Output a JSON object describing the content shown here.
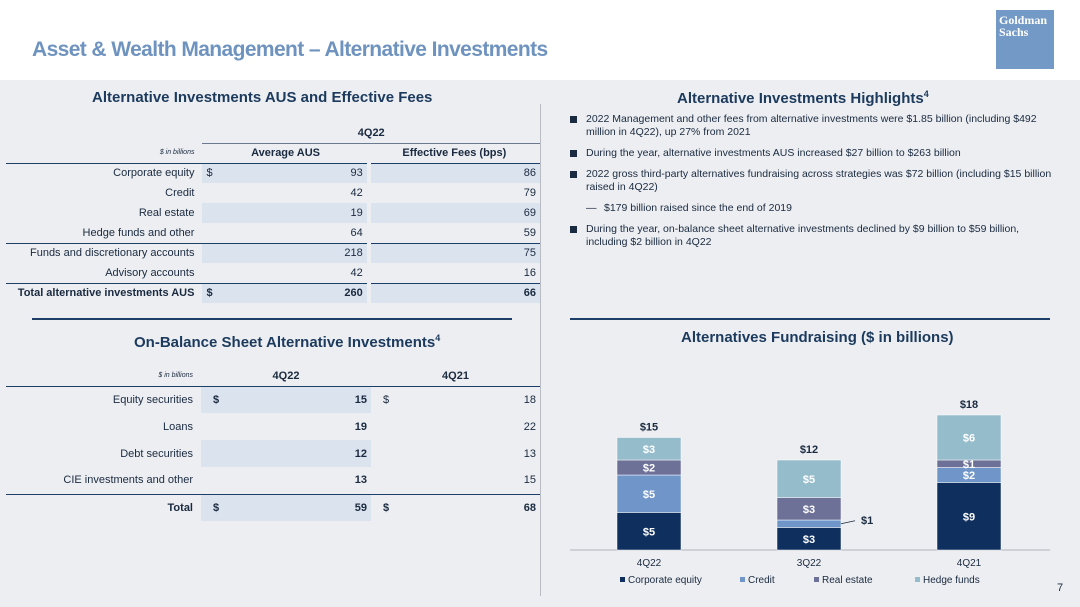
{
  "title": "Asset & Wealth Management – Alternative Investments",
  "logo": {
    "line1": "Goldman",
    "line2": "Sachs"
  },
  "aus": {
    "heading": "Alternative Investments AUS and Effective Fees",
    "period": "4Q22",
    "unit": "$ in billions",
    "col1": "Average AUS",
    "col2": "Effective Fees (bps)",
    "rows": [
      {
        "label": "Corporate equity",
        "dollar": "$",
        "aus": "93",
        "fees": "86"
      },
      {
        "label": "Credit",
        "dollar": "",
        "aus": "42",
        "fees": "79"
      },
      {
        "label": "Real estate",
        "dollar": "",
        "aus": "19",
        "fees": "69"
      },
      {
        "label": "Hedge funds and other",
        "dollar": "",
        "aus": "64",
        "fees": "59"
      },
      {
        "label": "Funds and discretionary accounts",
        "dollar": "",
        "aus": "218",
        "fees": "75"
      },
      {
        "label": "Advisory accounts",
        "dollar": "",
        "aus": "42",
        "fees": "16"
      }
    ],
    "total": {
      "label": "Total alternative investments AUS",
      "dollar": "$",
      "aus": "260",
      "fees": "66"
    }
  },
  "obs": {
    "heading": "On-Balance Sheet Alternative Investments",
    "sup": "4",
    "unit": "$ in billions",
    "col1": "4Q22",
    "col2": "4Q21",
    "rows": [
      {
        "label": "Equity securities",
        "d1": "$",
        "v1": "15",
        "d2": "$",
        "v2": "18"
      },
      {
        "label": "Loans",
        "d1": "",
        "v1": "19",
        "d2": "",
        "v2": "22"
      },
      {
        "label": "Debt securities",
        "d1": "",
        "v1": "12",
        "d2": "",
        "v2": "13"
      },
      {
        "label": "CIE investments and other",
        "d1": "",
        "v1": "13",
        "d2": "",
        "v2": "15"
      }
    ],
    "total": {
      "label": "Total",
      "d1": "$",
      "v1": "59",
      "d2": "$",
      "v2": "68"
    }
  },
  "highlights": {
    "heading": "Alternative Investments Highlights",
    "sup": "4",
    "items": [
      "2022 Management and other fees from alternative investments were $1.85 billion (including $492 million in 4Q22), up 27% from 2021",
      "During the year, alternative investments AUS increased $27 billion to $263 billion",
      "2022 gross third-party alternatives fundraising across strategies was $72 billion (including $15 billion raised in 4Q22)",
      "$179 billion raised since the end of 2019",
      "During the year, on-balance sheet alternative investments declined by $9 billion to $59 billion, including $2 billion in 4Q22"
    ],
    "dash": "—"
  },
  "page_number": "7",
  "colors": {
    "corporate": "#0f2f5e",
    "credit": "#6f95c9",
    "real_estate": "#6d7198",
    "hedge": "#95bccb"
  },
  "chart_data": {
    "type": "bar",
    "stacked": true,
    "title": "Alternatives Fundraising ($ in billions)",
    "categories": [
      "4Q22",
      "3Q22",
      "4Q21"
    ],
    "totals": [
      "$15",
      "$12",
      "$18"
    ],
    "series": [
      {
        "name": "Corporate equity",
        "values": [
          5,
          3,
          9
        ],
        "labels": [
          "$5",
          "$3",
          "$9"
        ]
      },
      {
        "name": "Credit",
        "values": [
          5,
          1,
          2
        ],
        "labels": [
          "$5",
          "$1",
          "$2"
        ]
      },
      {
        "name": "Real estate",
        "values": [
          2,
          3,
          1
        ],
        "labels": [
          "$2",
          "$3",
          "$1"
        ]
      },
      {
        "name": "Hedge funds",
        "values": [
          3,
          5,
          6
        ],
        "labels": [
          "$3",
          "$5",
          "$6"
        ]
      }
    ],
    "legend_position": "bottom"
  }
}
